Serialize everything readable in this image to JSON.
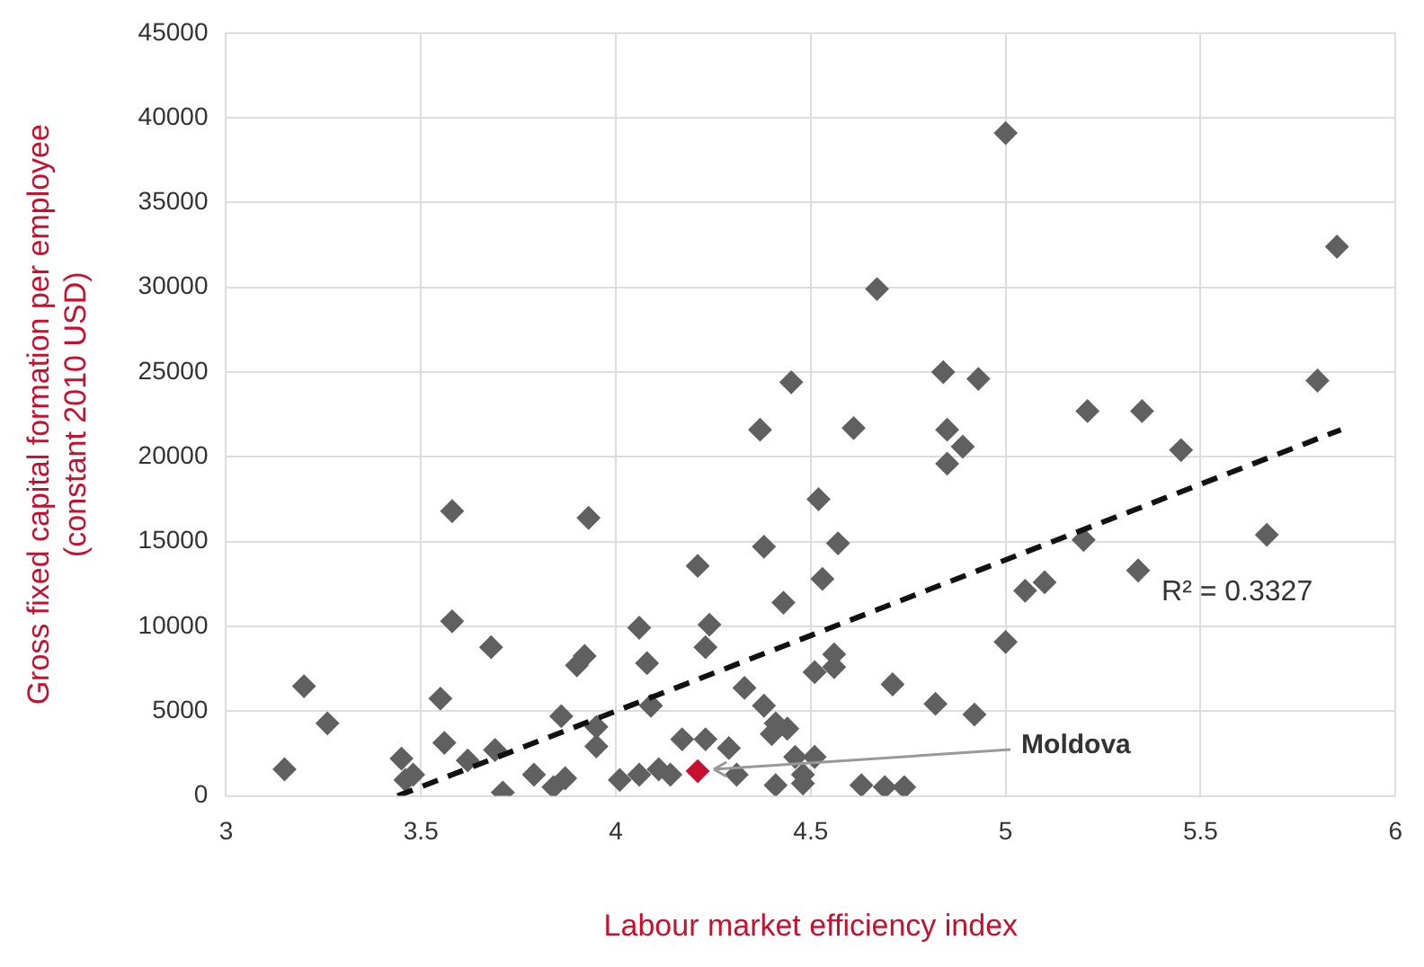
{
  "chart_data": {
    "type": "scatter",
    "xlabel": "Labour market efficiency index",
    "ylabel": "Gross fixed capital formation per employee\n(constant 2010 USD)",
    "xlim": [
      3,
      6
    ],
    "xticks": [
      3,
      3.5,
      4,
      4.5,
      5,
      5.5,
      6
    ],
    "ylim": [
      0,
      45000
    ],
    "yticks": [
      0,
      5000,
      10000,
      15000,
      20000,
      25000,
      30000,
      35000,
      40000,
      45000
    ],
    "grid": true,
    "legend": false,
    "marker": "diamond",
    "annotations": [
      "R² = 0.3327"
    ],
    "series": [
      {
        "color": "#606060",
        "x": [
          3.15,
          3.2,
          3.26,
          3.45,
          3.46,
          3.48,
          3.55,
          3.56,
          3.58,
          3.58,
          3.62,
          3.68,
          3.69,
          3.71,
          3.79,
          3.84,
          3.86,
          3.87,
          3.9,
          3.92,
          3.93,
          3.95,
          3.95,
          4.01,
          4.06,
          4.08,
          4.09,
          4.06,
          4.11,
          4.14,
          4.17,
          4.21,
          4.23,
          4.24,
          4.23,
          4.29,
          4.31,
          4.33,
          4.37,
          4.38,
          4.38,
          4.41,
          4.43,
          4.45,
          4.44,
          4.4,
          4.46,
          4.48,
          4.51,
          4.48,
          4.41,
          4.52,
          4.53,
          4.51,
          4.57,
          4.56,
          4.56,
          4.63,
          4.61,
          4.67,
          4.69,
          4.71,
          4.74,
          4.82,
          4.84,
          4.85,
          4.85,
          4.89,
          4.92,
          4.93,
          5,
          5,
          5.05,
          5.1,
          5.2,
          5.21,
          5.34,
          5.35,
          5.45,
          5.67,
          5.8,
          5.85
        ],
        "values": [
          1570,
          6470,
          4280,
          2200,
          940,
          1250,
          5740,
          3130,
          16800,
          10300,
          2090,
          8770,
          2710,
          200,
          1250,
          520,
          4700,
          1040,
          7700,
          8250,
          16400,
          2920,
          4070,
          940,
          9920,
          7830,
          5320,
          1250,
          1570,
          1250,
          3340,
          13570,
          8770,
          10100,
          3340,
          2820,
          1250,
          6370,
          21600,
          14700,
          5320,
          4280,
          11400,
          24400,
          3970,
          3650,
          2300,
          1250,
          2300,
          730,
          630,
          17500,
          12800,
          7300,
          14900,
          8350,
          7600,
          630,
          21700,
          29900,
          520,
          6580,
          520,
          5430,
          25000,
          21600,
          19600,
          20600,
          4800,
          24600,
          39100,
          9080,
          12100,
          12600,
          15100,
          22700,
          13300,
          22700,
          20400,
          15400,
          24500,
          32400
        ]
      },
      {
        "name": "Moldova",
        "color": "#c8102e",
        "x": [
          4.21
        ],
        "values": [
          1460
        ]
      },
      {
        "type": "line",
        "line_style": "dashed",
        "marker": "none",
        "color": "#111111",
        "x": [
          3.44,
          5.86
        ],
        "values": [
          0,
          21600
        ]
      }
    ]
  }
}
